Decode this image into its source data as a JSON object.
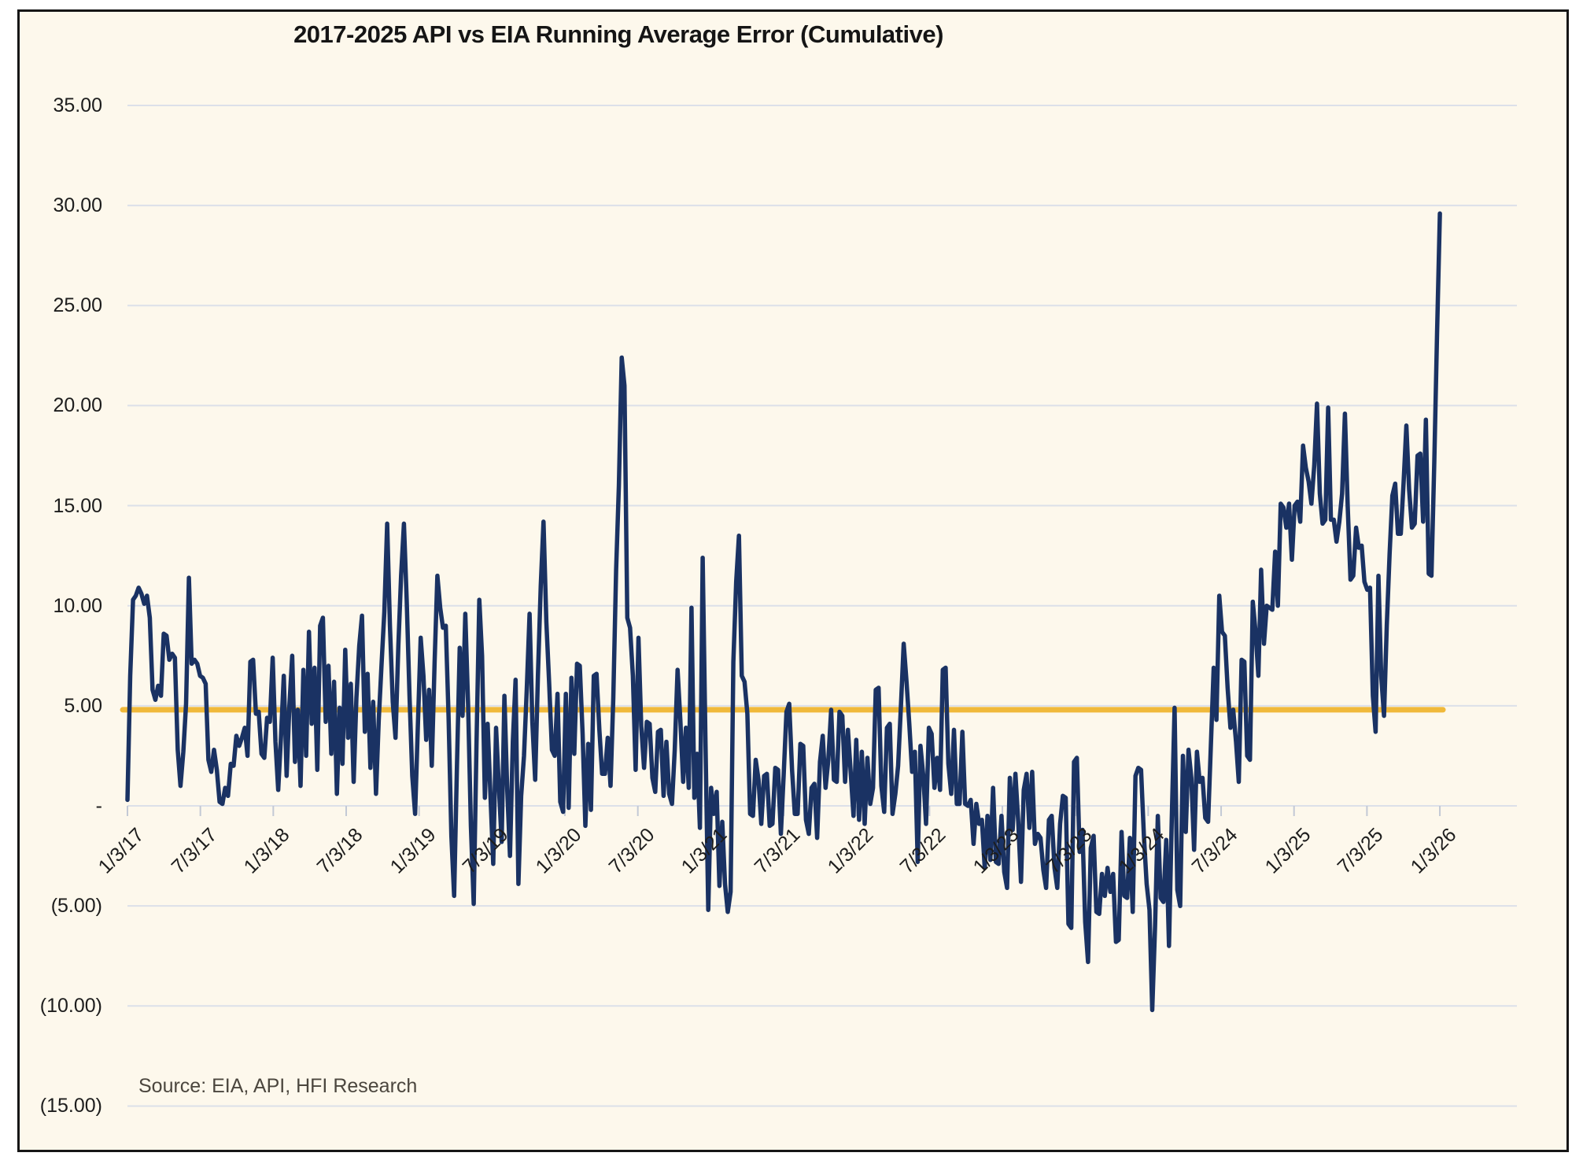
{
  "title": "2017-2025 API vs EIA Running Average Error (Cumulative)",
  "source_note": "Source: EIA, API, HFI Research",
  "colors": {
    "background": "#fdf8ec",
    "frame_border": "#161616",
    "gridline": "#dce0e9",
    "axis_tick": "#c3c9d5",
    "series_line": "#1a3263",
    "average_line": "#f0b93a",
    "axis_text": "#1d1d1d",
    "source_text": "#4b463e"
  },
  "chart_data": {
    "type": "line",
    "title": "2017-2025 API vs EIA Running Average Error (Cumulative)",
    "xlabel": "",
    "ylabel": "",
    "ylim": [
      -15,
      35
    ],
    "grid": true,
    "legend": "none",
    "x_label_rotation": -45,
    "y_tick_values": [
      35,
      30,
      25,
      20,
      15,
      10,
      5,
      0,
      -5,
      -10,
      -15
    ],
    "y_tick_labels": [
      "35.00",
      "30.00",
      "25.00",
      "20.00",
      "15.00",
      "10.00",
      "5.00",
      "-",
      "(5.00)",
      "(10.00)",
      "(15.00)"
    ],
    "x_tick_labels": [
      "1/3/17",
      "7/3/17",
      "1/3/18",
      "7/3/18",
      "1/3/19",
      "7/3/19",
      "1/3/20",
      "7/3/20",
      "1/3/21",
      "7/3/21",
      "1/3/22",
      "7/3/22",
      "1/3/23",
      "7/3/23",
      "1/3/24",
      "7/3/24",
      "1/3/25",
      "7/3/25",
      "1/3/26"
    ],
    "x_points_per_tick": 26,
    "series": [
      {
        "name": "API vs EIA running average error (cumulative), weekly",
        "color": "#1a3263",
        "values": [
          0.3,
          6.5,
          10.3,
          10.5,
          10.9,
          10.6,
          10.1,
          10.5,
          9.4,
          5.8,
          5.3,
          6.0,
          5.5,
          8.6,
          8.5,
          7.3,
          7.6,
          7.4,
          2.8,
          1.0,
          2.7,
          5.1,
          11.4,
          7.1,
          7.3,
          7.1,
          6.5,
          6.4,
          6.1,
          2.3,
          1.7,
          2.8,
          1.8,
          0.2,
          0.1,
          0.9,
          0.5,
          2.1,
          2.0,
          3.5,
          3.0,
          3.4,
          3.9,
          2.5,
          7.2,
          7.3,
          4.6,
          4.7,
          2.6,
          2.4,
          4.4,
          4.2,
          7.4,
          3.2,
          0.8,
          3.5,
          6.5,
          1.5,
          5.0,
          7.5,
          2.2,
          4.8,
          1.0,
          6.8,
          2.5,
          8.7,
          4.1,
          6.9,
          1.8,
          9.0,
          9.4,
          4.2,
          7.0,
          2.6,
          6.2,
          0.6,
          4.9,
          2.1,
          7.8,
          3.4,
          6.1,
          1.2,
          5.4,
          8.0,
          9.5,
          3.7,
          6.6,
          1.9,
          5.2,
          0.6,
          4.3,
          7.1,
          9.7,
          14.1,
          9.0,
          5.2,
          3.4,
          8.0,
          11.5,
          14.1,
          10.3,
          5.5,
          1.5,
          -0.4,
          4.0,
          8.4,
          6.5,
          3.3,
          5.8,
          2.0,
          7.2,
          11.5,
          9.9,
          8.9,
          9.0,
          4.5,
          -1.5,
          -4.5,
          2.0,
          7.9,
          4.5,
          9.6,
          5.0,
          -1.0,
          -4.9,
          3.0,
          10.3,
          7.5,
          0.4,
          4.1,
          0.5,
          -2.9,
          3.9,
          1.0,
          -1.8,
          5.5,
          0.8,
          -2.5,
          3.2,
          6.3,
          -3.9,
          0.5,
          2.5,
          5.8,
          9.6,
          4.2,
          1.3,
          6.5,
          11.0,
          14.2,
          9.2,
          6.2,
          2.8,
          2.5,
          5.6,
          0.2,
          -0.3,
          5.6,
          -0.1,
          6.4,
          2.6,
          7.1,
          7.0,
          3.6,
          -1.0,
          3.1,
          -0.2,
          6.5,
          6.6,
          3.8,
          1.6,
          1.6,
          3.4,
          1.0,
          5.4,
          11.8,
          16.0,
          22.4,
          21.0,
          9.4,
          8.9,
          6.5,
          1.8,
          8.4,
          4.0,
          1.9,
          4.2,
          4.1,
          1.4,
          0.7,
          3.7,
          3.8,
          0.5,
          3.2,
          0.6,
          0.1,
          2.8,
          6.8,
          4.3,
          1.2,
          3.9,
          0.9,
          9.9,
          0.4,
          2.6,
          -1.1,
          12.4,
          3.1,
          -5.2,
          0.9,
          -0.4,
          0.7,
          -4.0,
          -0.8,
          -3.9,
          -5.3,
          -4.3,
          7.2,
          11.2,
          13.5,
          6.5,
          6.2,
          4.6,
          -0.4,
          -0.5,
          2.3,
          1.3,
          -0.9,
          1.5,
          1.6,
          -1.0,
          -0.9,
          1.9,
          1.8,
          -1.4,
          1.5,
          4.7,
          5.1,
          1.8,
          -0.4,
          -0.4,
          3.1,
          3.0,
          -0.7,
          -1.4,
          0.9,
          1.1,
          -1.6,
          2.2,
          3.5,
          0.9,
          2.3,
          4.8,
          1.3,
          1.2,
          4.7,
          4.5,
          1.2,
          3.8,
          1.7,
          -0.5,
          3.3,
          -0.7,
          2.7,
          -0.9,
          2.4,
          0.1,
          0.9,
          5.8,
          5.9,
          1.0,
          -0.3,
          3.9,
          4.1,
          -0.4,
          0.6,
          2.0,
          5.0,
          8.1,
          6.2,
          4.1,
          1.7,
          2.7,
          -2.8,
          3.0,
          1.5,
          -0.9,
          3.9,
          3.6,
          0.9,
          2.4,
          0.8,
          6.8,
          6.9,
          2.1,
          0.6,
          3.8,
          0.1,
          0.1,
          3.7,
          0.1,
          0.0,
          0.3,
          -1.9,
          0.1,
          -0.9,
          -0.7,
          -3.1,
          -0.5,
          -2.7,
          0.9,
          -2.8,
          -2.9,
          -0.5,
          -3.3,
          -4.1,
          1.4,
          -1.2,
          1.6,
          -0.8,
          -3.8,
          0.8,
          1.6,
          -1.1,
          1.7,
          -1.9,
          -1.4,
          -1.6,
          -3.2,
          -4.1,
          -0.7,
          -0.5,
          -3.1,
          -4.1,
          -0.9,
          0.5,
          0.4,
          -5.9,
          -6.1,
          2.2,
          2.4,
          -2.3,
          -1.2,
          -5.8,
          -7.8,
          -2.1,
          -1.5,
          -5.3,
          -5.4,
          -3.4,
          -4.5,
          -3.1,
          -4.3,
          -3.4,
          -6.8,
          -6.7,
          -1.3,
          -4.5,
          -4.6,
          -1.6,
          -5.3,
          1.5,
          1.9,
          1.8,
          -1.5,
          -3.9,
          -5.2,
          -10.2,
          -6.0,
          -0.5,
          -4.6,
          -4.8,
          -1.7,
          -7.0,
          -0.7,
          4.9,
          -4.2,
          -5.0,
          2.5,
          -1.3,
          2.8,
          1.4,
          -2.2,
          2.7,
          1.2,
          1.4,
          -0.6,
          -0.8,
          3.0,
          6.9,
          4.3,
          10.5,
          8.7,
          8.5,
          5.9,
          3.9,
          4.8,
          3.2,
          1.2,
          7.3,
          7.2,
          2.5,
          2.3,
          10.2,
          8.7,
          6.5,
          11.8,
          8.1,
          10.0,
          9.9,
          9.8,
          12.7,
          10.0,
          15.1,
          14.9,
          13.9,
          15.1,
          12.3,
          15.0,
          15.2,
          14.2,
          18.0,
          16.9,
          16.2,
          15.1,
          17.0,
          20.1,
          15.6,
          14.1,
          14.3,
          19.9,
          14.3,
          14.3,
          13.2,
          14.2,
          15.6,
          19.6,
          15.0,
          11.3,
          11.5,
          13.9,
          12.9,
          13.0,
          11.2,
          10.8,
          10.9,
          5.5,
          3.7,
          11.5,
          6.5,
          4.5,
          9.0,
          12.6,
          15.5,
          16.1,
          13.6,
          13.6,
          16.1,
          19.0,
          15.8,
          13.9,
          14.1,
          17.5,
          17.6,
          14.2,
          19.3,
          11.6,
          11.5,
          17.2,
          23.6,
          29.6
        ]
      },
      {
        "name": "running average reference line",
        "color": "#f0b93a",
        "value": 4.8
      }
    ]
  }
}
